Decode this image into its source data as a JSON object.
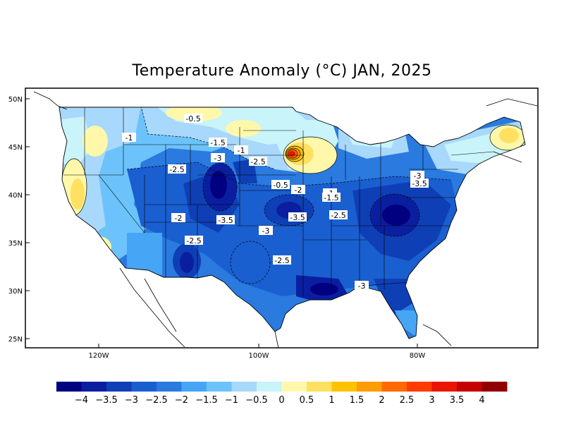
{
  "title": "Temperature Anomaly (°C) JAN, 2025",
  "lat_labels": [
    "50N",
    "45N",
    "40N",
    "35N",
    "30N",
    "25N"
  ],
  "lon_labels": [
    "120W",
    "100W",
    "80W"
  ],
  "contour_labels": [
    "-0.5",
    "-1",
    "-1.5",
    "-1",
    "-3",
    "-2.5",
    "-2.5",
    "-0.5",
    "-2",
    "-1",
    "-1.5",
    "-2",
    "-3.5",
    "-3.5",
    "-2.5",
    "-3",
    "-2.5",
    "-2.5",
    "-3",
    "-3",
    "-3.5"
  ],
  "colorbar": {
    "colors": [
      "#000080",
      "#0a1fa0",
      "#0f3fb5",
      "#1a5fd0",
      "#2a7ae0",
      "#46a6f5",
      "#6cc3fb",
      "#a8d8fb",
      "#c8f4fa",
      "#fff8aa",
      "#ffe060",
      "#ffc200",
      "#ff9d00",
      "#ff6a00",
      "#ff3b00",
      "#e81500",
      "#c40000",
      "#900000"
    ],
    "labels": [
      "-4",
      "-3.5",
      "-3",
      "-2.5",
      "-2",
      "-1.5",
      "-1",
      "-0.5",
      "0",
      "0.5",
      "1",
      "1.5",
      "2",
      "2.5",
      "3",
      "3.5",
      "4"
    ]
  }
}
